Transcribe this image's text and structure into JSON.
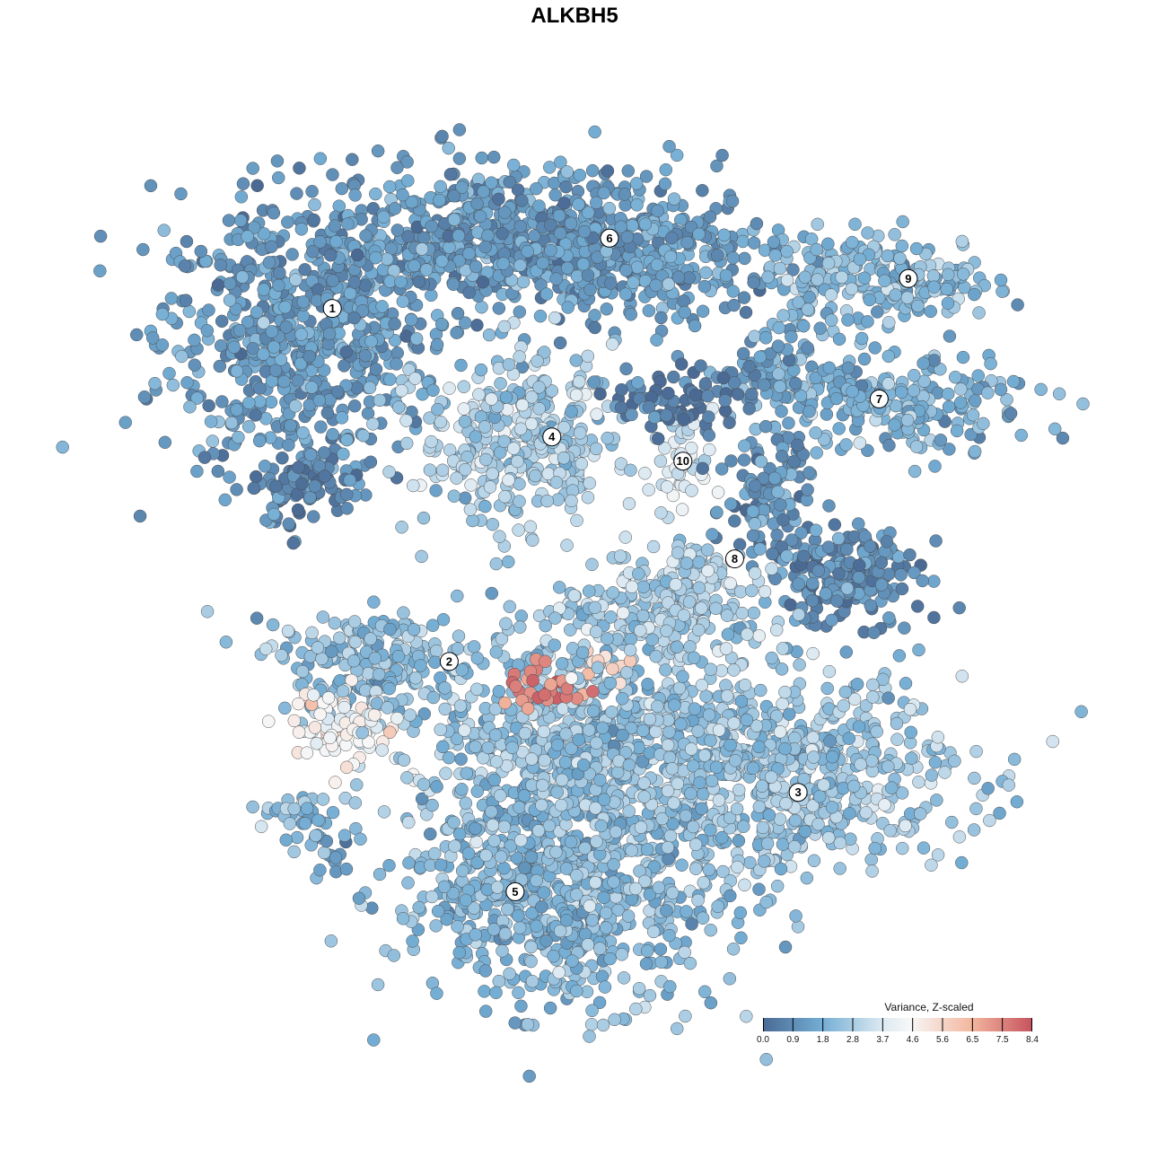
{
  "chart_data": {
    "type": "scatter",
    "title": "ALKBH5",
    "xlabel": "",
    "ylabel": "",
    "axes_visible": false,
    "grid": false,
    "legend": {
      "title": "Variance, Z-scaled",
      "placement": "bottom-right",
      "ticks": [
        "0.0",
        "0.9",
        "1.8",
        "2.8",
        "3.7",
        "4.6",
        "5.6",
        "6.5",
        "7.5",
        "8.4"
      ],
      "range": [
        0.0,
        8.4
      ],
      "colorscale": [
        {
          "value": 0.0,
          "color": "#4a6a94"
        },
        {
          "value": 1.8,
          "color": "#72acd3"
        },
        {
          "value": 3.7,
          "color": "#dbe9f2"
        },
        {
          "value": 4.6,
          "color": "#f7f7f7"
        },
        {
          "value": 6.5,
          "color": "#f3b79f"
        },
        {
          "value": 8.4,
          "color": "#c6525f"
        }
      ]
    },
    "cluster_labels": [
      {
        "label": "1",
        "x": -31.7,
        "y": 32.6
      },
      {
        "label": "2",
        "x": -17.7,
        "y": -11.1
      },
      {
        "label": "3",
        "x": 24.1,
        "y": -27.3
      },
      {
        "label": "4",
        "x": -5.4,
        "y": 16.7
      },
      {
        "label": "5",
        "x": -9.8,
        "y": -39.6
      },
      {
        "label": "6",
        "x": 1.5,
        "y": 41.3
      },
      {
        "label": "7",
        "x": 33.8,
        "y": 21.4
      },
      {
        "label": "8",
        "x": 16.5,
        "y": 1.6
      },
      {
        "label": "9",
        "x": 37.3,
        "y": 36.3
      },
      {
        "label": "10",
        "x": 10.3,
        "y": 13.7
      }
    ],
    "point_groups": [
      {
        "cluster": "1",
        "x": -36.0,
        "y": 28.6,
        "sx": 11.8,
        "sy": 12.2,
        "n": 600,
        "mean_value": 1.3
      },
      {
        "cluster": "1",
        "x": -35.0,
        "y": 10.8,
        "sx": 4.3,
        "sy": 3.3,
        "n": 80,
        "mean_value": 0.7
      },
      {
        "cluster": "6",
        "x": -11.3,
        "y": 40.8,
        "sx": 18.3,
        "sy": 6.7,
        "n": 650,
        "mean_value": 1.3
      },
      {
        "cluster": "6",
        "x": 5.9,
        "y": 38.6,
        "sx": 10.8,
        "sy": 5.6,
        "n": 250,
        "mean_value": 1.4
      },
      {
        "cluster": "9",
        "x": 33.9,
        "y": 36.3,
        "sx": 9.7,
        "sy": 3.9,
        "n": 200,
        "mean_value": 2.2
      },
      {
        "cluster": "7",
        "x": 34.9,
        "y": 20.8,
        "sx": 12.9,
        "sy": 4.4,
        "n": 250,
        "mean_value": 1.9
      },
      {
        "cluster": "7",
        "x": 21.0,
        "y": 26.3,
        "sx": 4.3,
        "sy": 3.3,
        "n": 60,
        "mean_value": 1.6
      },
      {
        "cluster": "4",
        "x": -9.7,
        "y": 16.3,
        "sx": 8.1,
        "sy": 7.8,
        "n": 350,
        "mean_value": 2.8
      },
      {
        "cluster": "10",
        "x": 10.2,
        "y": 13.7,
        "sx": 2.7,
        "sy": 3.9,
        "n": 40,
        "mean_value": 3.6
      },
      {
        "cluster": "10",
        "x": 10.2,
        "y": 21.8,
        "sx": 6.5,
        "sy": 2.8,
        "n": 80,
        "mean_value": 0.5
      },
      {
        "cluster": "8",
        "x": 29.6,
        "y": -0.3,
        "sx": 6.5,
        "sy": 4.4,
        "n": 200,
        "mean_value": 0.9
      },
      {
        "cluster": "8",
        "x": 19.9,
        "y": 9.8,
        "sx": 4.3,
        "sy": 5.6,
        "n": 100,
        "mean_value": 1.2
      },
      {
        "cluster": "8",
        "x": 11.3,
        "y": -0.3,
        "sx": 6.5,
        "sy": 3.3,
        "n": 80,
        "mean_value": 3.0
      },
      {
        "cluster": "2",
        "x": -26.3,
        "y": -11.4,
        "sx": 8.6,
        "sy": 4.4,
        "n": 200,
        "mean_value": 2.3
      },
      {
        "cluster": "2",
        "x": -30.6,
        "y": -19.2,
        "sx": 5.4,
        "sy": 3.3,
        "n": 100,
        "mean_value": 4.4
      },
      {
        "cluster": "3",
        "x": 23.1,
        "y": -24.8,
        "sx": 15.1,
        "sy": 8.9,
        "n": 600,
        "mean_value": 2.6
      },
      {
        "cluster": "5",
        "x": -4.8,
        "y": -39.2,
        "sx": 14.0,
        "sy": 10.0,
        "n": 800,
        "mean_value": 2.2
      },
      {
        "cluster": "5",
        "x": -1.6,
        "y": -20.3,
        "sx": 14.0,
        "sy": 8.9,
        "n": 600,
        "mean_value": 2.5
      },
      {
        "cluster": "5",
        "x": -6.0,
        "y": -14.8,
        "sx": 3.8,
        "sy": 2.2,
        "n": 30,
        "mean_value": 7.5
      },
      {
        "cluster": "5",
        "x": 1.6,
        "y": -11.4,
        "sx": 2.7,
        "sy": 1.1,
        "n": 12,
        "mean_value": 5.8
      },
      {
        "cluster": "2",
        "x": -37.1,
        "y": -29.7,
        "sx": 3.2,
        "sy": 1.3,
        "n": 30,
        "mean_value": 2.4
      },
      {
        "cluster": "2",
        "x": -32.8,
        "y": -33.6,
        "sx": 2.7,
        "sy": 3.3,
        "n": 30,
        "mean_value": 1.8
      },
      {
        "cluster": "5",
        "x": 5.9,
        "y": -5.9,
        "sx": 8.6,
        "sy": 4.4,
        "n": 200,
        "mean_value": 2.8
      }
    ]
  }
}
